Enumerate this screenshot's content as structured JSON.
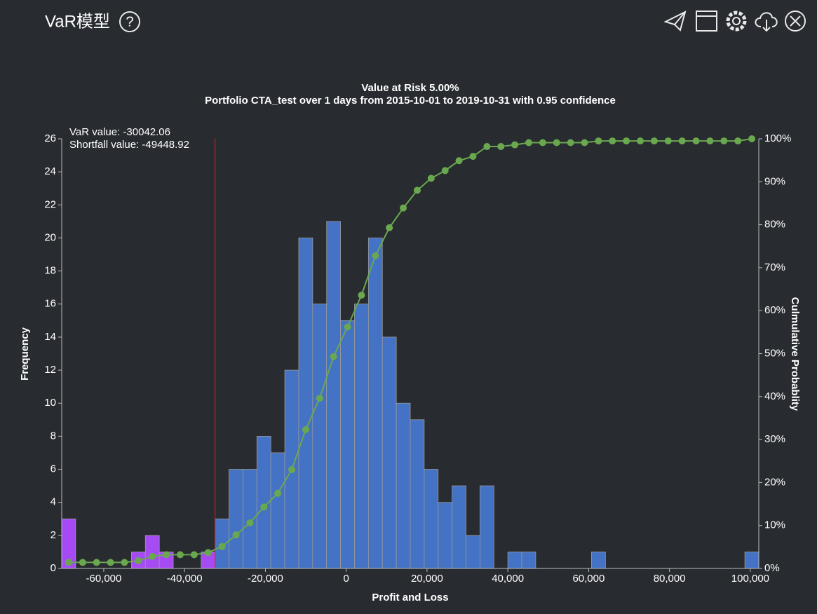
{
  "header": {
    "title": "VaR模型",
    "help": "?"
  },
  "chart_data": {
    "type": "histogram",
    "title": "Value at Risk 5.00%",
    "subtitle": "Portfolio CTA_test over 1 days from 2015-10-01 to 2019-10-31 with 0.95 confidence",
    "annotations": [
      "VaR value: -30042.06",
      "Shortfall value: -49448.92"
    ],
    "var_value": -30042.06,
    "x_label": "Profit and Loss",
    "y_label": "Frequency",
    "y2_label": "Culmulative Probablity",
    "bins": [
      -70400,
      -66950,
      -63500,
      -60050,
      -56600,
      -53150,
      -49700,
      -46250,
      -42800,
      -39350,
      -35900,
      -32450,
      -29000,
      -25550,
      -22100,
      -18650,
      -15200,
      -11750,
      -8300,
      -4850,
      -1400,
      2050,
      5500,
      8950,
      12400,
      15850,
      19300,
      22750,
      26200,
      29650,
      33100,
      36550,
      40000,
      43450,
      46900,
      50350,
      53800,
      57250,
      60700,
      64150,
      67600,
      71050,
      74500,
      77950,
      81400,
      84850,
      88300,
      91750,
      95200,
      98650,
      102100
    ],
    "values": [
      3,
      0,
      0,
      0,
      0,
      1,
      2,
      1,
      0,
      0,
      1,
      3,
      6,
      6,
      8,
      7,
      12,
      20,
      16,
      21,
      15,
      16,
      20,
      14,
      10,
      9,
      6,
      4,
      5,
      2,
      5,
      0,
      1,
      1,
      0,
      0,
      0,
      0,
      1,
      0,
      0,
      0,
      0,
      0,
      0,
      0,
      0,
      0,
      0,
      1
    ],
    "color": "#4472c4",
    "highlight_color": "#a64bf4",
    "cumulative_values": [
      1.4,
      1.4,
      1.4,
      1.4,
      1.4,
      1.8,
      2.8,
      3.2,
      3.2,
      3.2,
      3.7,
      5.1,
      7.8,
      10.6,
      14.3,
      17.5,
      23.0,
      32.3,
      39.6,
      49.3,
      56.2,
      63.6,
      72.8,
      79.3,
      83.9,
      88.0,
      90.8,
      92.6,
      94.9,
      95.9,
      98.2,
      98.2,
      98.6,
      99.1,
      99.1,
      99.1,
      99.1,
      99.1,
      99.5,
      99.5,
      99.5,
      99.5,
      99.5,
      99.5,
      99.5,
      99.5,
      99.5,
      99.5,
      99.5,
      100
    ],
    "cumulative_color": "#6aa84f",
    "xlim": [
      -70400,
      102100
    ],
    "xticks": [
      {
        "value": -60000,
        "label": "-60,000"
      },
      {
        "value": -40000,
        "label": "-40,000"
      },
      {
        "value": -20000,
        "label": "-20,000"
      },
      0,
      {
        "value": 20000,
        "label": "20,000"
      },
      {
        "value": 40000,
        "label": "40,000"
      },
      {
        "value": 60000,
        "label": "60,000"
      },
      {
        "value": 80000,
        "label": "80,000"
      },
      {
        "value": 100000,
        "label": "100,000"
      }
    ],
    "ylim": [
      0,
      26
    ],
    "yticks": [
      0,
      2,
      4,
      6,
      8,
      10,
      12,
      14,
      16,
      18,
      20,
      22,
      24,
      26
    ],
    "y2lim": [
      0,
      100
    ],
    "y2ticks": [
      {
        "value": 0,
        "label": "0%"
      },
      {
        "value": 10,
        "label": "10%"
      },
      {
        "value": 20,
        "label": "20%"
      },
      {
        "value": 30,
        "label": "30%"
      },
      {
        "value": 40,
        "label": "40%"
      },
      {
        "value": 50,
        "label": "50%"
      },
      {
        "value": 60,
        "label": "60%"
      },
      {
        "value": 70,
        "label": "70%"
      },
      {
        "value": 80,
        "label": "80%"
      },
      {
        "value": 90,
        "label": "90%"
      },
      {
        "value": 100,
        "label": "100%"
      }
    ]
  }
}
